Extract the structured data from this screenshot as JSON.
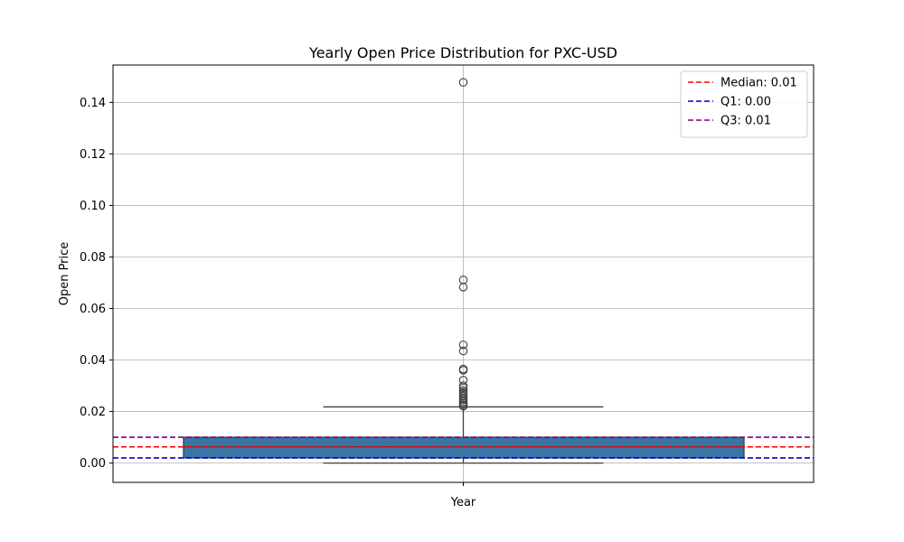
{
  "chart_data": {
    "type": "box",
    "title": "Yearly Open Price Distribution for PXC-USD",
    "xlabel": "Year",
    "ylabel": "Open Price",
    "ylim": [
      -0.0075,
      0.1545
    ],
    "yticks": [
      0.0,
      0.02,
      0.04,
      0.06,
      0.08,
      0.1,
      0.12,
      0.14
    ],
    "ytick_labels": [
      "0.00",
      "0.02",
      "0.04",
      "0.06",
      "0.08",
      "0.10",
      "0.12",
      "0.14"
    ],
    "grid": true,
    "legend_position": "top-right",
    "box": {
      "q1": 0.002,
      "median": 0.0063,
      "q3": 0.01,
      "whisker_low": 0.0,
      "whisker_high": 0.0218,
      "fill_color": "#3a75a8",
      "outliers": [
        0.1478,
        0.0711,
        0.0683,
        0.0459,
        0.0435,
        0.0365,
        0.036,
        0.0322,
        0.03,
        0.0292,
        0.0282,
        0.0275,
        0.0268,
        0.026,
        0.0252,
        0.0245,
        0.0238,
        0.0232,
        0.0226,
        0.0221
      ]
    },
    "reference_lines": [
      {
        "label": "Median: 0.01",
        "value": 0.0063,
        "color": "#ff0000"
      },
      {
        "label": "Q1: 0.00",
        "value": 0.002,
        "color": "#0000cc"
      },
      {
        "label": "Q3: 0.01",
        "value": 0.01,
        "color": "#800080"
      }
    ]
  }
}
